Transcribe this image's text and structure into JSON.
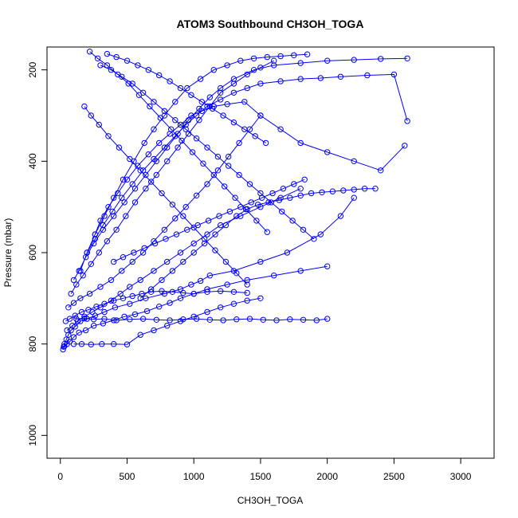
{
  "chart_data": {
    "type": "line",
    "title": "ATOM3 Southbound CH3OH_TOGA",
    "xlabel": "CH3OH_TOGA",
    "ylabel": "Pressure (mbar)",
    "xlim": [
      -100,
      3250
    ],
    "ylim": [
      1050,
      150
    ],
    "y_reversed": true,
    "x_ticks": [
      0,
      500,
      1000,
      1500,
      2000,
      2500,
      3000
    ],
    "x_tick_labels": [
      "0",
      "500",
      "1000",
      "1500",
      "2000",
      "2500",
      "3000"
    ],
    "y_ticks": [
      200,
      400,
      600,
      800,
      1000
    ],
    "y_tick_labels": [
      "200",
      "400",
      "600",
      "800",
      "1000"
    ],
    "grid": false,
    "legend": "none",
    "series_color": "#0000ff",
    "marker": "open-circle",
    "series": [
      {
        "x": [
          20,
          25,
          30,
          45,
          60,
          80,
          110,
          150,
          200,
          260,
          330,
          410,
          520,
          640,
          780,
          900,
          980,
          1050,
          1120,
          1300,
          1500,
          1700,
          1950,
          2100,
          2200
        ],
        "y": [
          812,
          806,
          800,
          790,
          780,
          770,
          762,
          750,
          745,
          738,
          730,
          720,
          712,
          700,
          690,
          680,
          670,
          662,
          650,
          640,
          620,
          600,
          560,
          520,
          480
        ]
      },
      {
        "x": [
          30,
          50,
          70,
          100,
          140,
          190,
          250,
          320,
          400,
          480,
          560,
          650,
          740,
          820,
          900,
          1000,
          1100,
          1250,
          1400,
          1600,
          1800,
          2000
        ],
        "y": [
          805,
          800,
          795,
          785,
          775,
          770,
          760,
          755,
          748,
          740,
          735,
          728,
          718,
          710,
          700,
          690,
          680,
          670,
          660,
          650,
          640,
          630
        ]
      },
      {
        "x": [
          50,
          90,
          130,
          180,
          240,
          300,
          380,
          450,
          520,
          600,
          700,
          800,
          900,
          1000,
          1100,
          1200,
          1350,
          1500,
          1650,
          1800
        ],
        "y": [
          770,
          760,
          750,
          740,
          730,
          720,
          705,
          690,
          675,
          660,
          640,
          620,
          600,
          580,
          560,
          540,
          520,
          500,
          480,
          460
        ]
      },
      {
        "x": [
          60,
          100,
          150,
          220,
          300,
          380,
          460,
          540,
          620,
          700,
          780,
          860,
          940,
          1020,
          1100,
          1180,
          1260,
          1340,
          1420,
          1500
        ],
        "y": [
          720,
          710,
          700,
          690,
          675,
          660,
          640,
          620,
          600,
          575,
          550,
          525,
          500,
          475,
          450,
          420,
          390,
          360,
          330,
          300
        ]
      },
      {
        "x": [
          80,
          120,
          170,
          230,
          290,
          350,
          420,
          490,
          560,
          640,
          720,
          800,
          880,
          960,
          1040,
          1120,
          1200,
          1300,
          1400,
          1500,
          1600
        ],
        "y": [
          690,
          670,
          650,
          625,
          600,
          575,
          550,
          520,
          490,
          460,
          430,
          400,
          370,
          340,
          310,
          280,
          250,
          230,
          210,
          195,
          180
        ]
      },
      {
        "x": [
          100,
          140,
          190,
          250,
          320,
          400,
          480,
          560,
          640,
          720,
          800,
          880,
          960,
          1040,
          1120,
          1200,
          1300,
          1450,
          1600,
          1800,
          2000,
          2200,
          2400,
          2600
        ],
        "y": [
          660,
          640,
          610,
          580,
          550,
          520,
          490,
          460,
          430,
          400,
          370,
          340,
          310,
          285,
          260,
          240,
          220,
          200,
          190,
          185,
          180,
          178,
          176,
          175
        ]
      },
      {
        "x": [
          150,
          200,
          260,
          330,
          400,
          470,
          550,
          630,
          700,
          780,
          860,
          950,
          1050,
          1150,
          1250,
          1350,
          1450,
          1550,
          1650,
          1750,
          1850
        ],
        "y": [
          640,
          600,
          560,
          520,
          480,
          440,
          400,
          360,
          330,
          300,
          270,
          240,
          220,
          200,
          190,
          180,
          175,
          172,
          170,
          168,
          166
        ]
      },
      {
        "x": [
          200,
          260,
          320,
          390,
          460,
          540,
          620,
          700,
          780,
          860,
          940,
          1020,
          1100,
          1200,
          1300,
          1400,
          1500,
          1650,
          1800,
          1950,
          2100,
          2300,
          2500,
          2600
        ],
        "y": [
          600,
          570,
          540,
          510,
          480,
          450,
          420,
          395,
          370,
          345,
          320,
          300,
          280,
          265,
          250,
          240,
          230,
          225,
          220,
          218,
          215,
          212,
          210,
          312
        ]
      },
      {
        "x": [
          260,
          300,
          360,
          430,
          500,
          580,
          660,
          740,
          820,
          900,
          980,
          1060,
          1150,
          1250,
          1380,
          1500,
          1650,
          1800,
          2000,
          2200,
          2400,
          2580
        ],
        "y": [
          560,
          530,
          500,
          470,
          440,
          410,
          385,
          360,
          340,
          320,
          300,
          290,
          280,
          275,
          270,
          300,
          330,
          360,
          380,
          400,
          420,
          366
        ]
      },
      {
        "x": [
          40,
          70,
          110,
          160,
          210,
          270,
          330,
          400,
          470,
          540,
          610,
          680,
          760,
          840,
          920,
          1000,
          1100,
          1200,
          1300,
          1400
        ],
        "y": [
          750,
          745,
          738,
          730,
          725,
          718,
          712,
          705,
          700,
          695,
          690,
          686,
          684,
          686,
          688,
          690,
          686,
          684,
          686,
          688
        ]
      },
      {
        "x": [
          120,
          180,
          250,
          330,
          420,
          520,
          620,
          720,
          820,
          920,
          1020,
          1120,
          1220,
          1320,
          1420,
          1520,
          1620,
          1720,
          1820,
          1920,
          2000
        ],
        "y": [
          745,
          744,
          746,
          745,
          748,
          746,
          745,
          747,
          748,
          746,
          745,
          747,
          748,
          746,
          745,
          747,
          748,
          746,
          747,
          748,
          745
        ]
      },
      {
        "x": [
          100,
          160,
          230,
          310,
          400,
          500,
          600,
          700,
          800,
          900,
          1000,
          1100,
          1200,
          1300,
          1400,
          1500
        ],
        "y": [
          800,
          800,
          801,
          800,
          800,
          801,
          780,
          770,
          760,
          750,
          740,
          730,
          720,
          712,
          705,
          700
        ]
      },
      {
        "x": [
          300,
          380,
          460,
          540,
          620,
          700,
          780,
          860,
          940,
          1020,
          1100,
          1180,
          1260,
          1340,
          1420,
          1500,
          1580,
          1660,
          1740,
          1820,
          1900
        ],
        "y": [
          190,
          200,
          215,
          230,
          250,
          270,
          290,
          310,
          330,
          350,
          370,
          390,
          410,
          430,
          450,
          470,
          490,
          510,
          530,
          550,
          570
        ]
      },
      {
        "x": [
          180,
          230,
          290,
          360,
          440,
          520,
          600,
          680,
          760,
          840,
          920,
          1000,
          1080,
          1160,
          1240,
          1320,
          1400
        ],
        "y": [
          280,
          300,
          320,
          345,
          370,
          395,
          420,
          445,
          470,
          495,
          520,
          545,
          570,
          595,
          620,
          645,
          670
        ]
      },
      {
        "x": [
          220,
          280,
          350,
          430,
          510,
          590,
          670,
          750,
          830,
          910,
          990,
          1070,
          1150,
          1230,
          1310,
          1390,
          1470,
          1550
        ],
        "y": [
          160,
          175,
          190,
          210,
          230,
          255,
          280,
          305,
          330,
          355,
          380,
          405,
          430,
          455,
          480,
          505,
          530,
          555
        ]
      },
      {
        "x": [
          400,
          470,
          550,
          630,
          710,
          790,
          870,
          950,
          1030,
          1110,
          1190,
          1270,
          1350,
          1430,
          1510,
          1590,
          1670,
          1750,
          1830
        ],
        "y": [
          620,
          610,
          600,
          590,
          580,
          570,
          560,
          550,
          540,
          530,
          520,
          510,
          500,
          490,
          480,
          470,
          460,
          450,
          440
        ]
      },
      {
        "x": [
          600,
          680,
          760,
          840,
          920,
          1000,
          1080,
          1160,
          1240,
          1320,
          1400,
          1480,
          1560,
          1640,
          1720,
          1800,
          1880,
          1960,
          2040,
          2120,
          2200,
          2280,
          2360
        ],
        "y": [
          700,
          680,
          660,
          640,
          620,
          600,
          580,
          560,
          540,
          520,
          505,
          495,
          490,
          485,
          480,
          475,
          470,
          468,
          466,
          464,
          462,
          460,
          460
        ]
      },
      {
        "x": [
          350,
          420,
          500,
          580,
          660,
          740,
          820,
          900,
          980,
          1060,
          1140,
          1220,
          1300,
          1380,
          1460,
          1540
        ],
        "y": [
          165,
          172,
          180,
          190,
          200,
          212,
          225,
          240,
          255,
          270,
          285,
          300,
          315,
          330,
          345,
          360
        ]
      }
    ]
  }
}
